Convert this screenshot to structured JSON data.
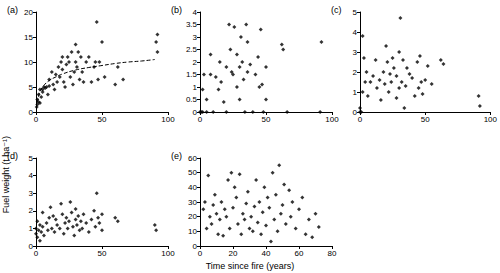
{
  "chart_data": {
    "type": "scatter",
    "xlabel": "Time since fire (years)",
    "ylabel": "Fuel weight (t ha⁻¹)",
    "grid": false,
    "panels": [
      {
        "title": "(a)",
        "xlim": [
          0,
          100
        ],
        "xticks": [
          0,
          50,
          100
        ],
        "ylim": [
          0,
          20
        ],
        "yticks": [
          0,
          5,
          10,
          15,
          20
        ],
        "series": [
          {
            "type": "scatter",
            "marker": "diamond",
            "color": "#000000",
            "x": [
              0.5,
              1,
              1,
              2,
              2,
              3,
              3,
              4,
              5,
              5,
              6,
              7,
              8,
              9,
              10,
              10,
              12,
              13,
              14,
              15,
              16,
              17,
              18,
              19,
              20,
              20,
              21,
              22,
              23,
              24,
              25,
              26,
              27,
              28,
              29,
              30,
              30,
              31,
              32,
              33,
              34,
              35,
              36,
              38,
              40,
              42,
              44,
              45,
              46,
              47,
              48,
              50,
              52,
              60,
              62,
              66,
              91,
              92,
              92
            ],
            "values": [
              1,
              1.5,
              2.5,
              2,
              3.5,
              4.5,
              1.8,
              3,
              4.5,
              4,
              5,
              4.8,
              5,
              3.5,
              5.2,
              6.5,
              8,
              5.5,
              4.5,
              7.5,
              6,
              9,
              7,
              10,
              11,
              8.5,
              6,
              5,
              9.5,
              11,
              10,
              7,
              12,
              5.5,
              8,
              10,
              13.5,
              9,
              12,
              6.5,
              11,
              8,
              6,
              10,
              11,
              6,
              9,
              10,
              18,
              6.5,
              10,
              14,
              7,
              5.5,
              9,
              6.5,
              14,
              15.5,
              12
            ]
          },
          {
            "type": "line",
            "line_style": "dashed",
            "color": "#000000",
            "x": [
              1,
              2,
              3,
              5,
              10,
              15,
              20,
              30,
              40,
              50,
              60,
              70,
              80,
              90
            ],
            "values": [
              1.9,
              3.2,
              4.0,
              5.0,
              6.3,
              7.0,
              7.6,
              8.4,
              8.9,
              9.3,
              9.7,
              10.0,
              10.2,
              10.5
            ]
          }
        ]
      },
      {
        "title": "(b)",
        "xlim": [
          0,
          100
        ],
        "xticks": [
          0,
          50,
          100
        ],
        "ylim": [
          0,
          4
        ],
        "yticks": [
          0,
          0.5,
          1,
          1.5,
          2,
          2.5,
          3,
          3.5,
          4
        ],
        "series": [
          {
            "type": "scatter",
            "marker": "diamond",
            "color": "#000000",
            "x": [
              0,
              1,
              2,
              2,
              3,
              5,
              5,
              8,
              8,
              10,
              12,
              14,
              15,
              16,
              18,
              20,
              20,
              22,
              23,
              24,
              25,
              26,
              28,
              28,
              30,
              30,
              31,
              32,
              33,
              34,
              35,
              36,
              36,
              38,
              40,
              42,
              44,
              45,
              46,
              47,
              48,
              50,
              50,
              62,
              63,
              66,
              91,
              92
            ],
            "values": [
              0,
              0,
              0.9,
              0,
              1.5,
              0.5,
              0,
              2.3,
              1.5,
              0,
              1.4,
              0.9,
              2,
              1.2,
              0.4,
              1.8,
              0,
              3.5,
              2.5,
              1.6,
              1.5,
              3.4,
              2.3,
              1,
              1.8,
              0.5,
              3,
              2,
              1.3,
              0,
              3.5,
              2.8,
              1.6,
              1.9,
              0,
              1.5,
              2.2,
              1,
              3.3,
              1.1,
              0,
              0.5,
              1.8,
              2.7,
              2.5,
              0,
              0,
              2.8
            ]
          }
        ]
      },
      {
        "title": "(c)",
        "xlim": [
          0,
          100
        ],
        "xticks": [
          0,
          50,
          100
        ],
        "ylim": [
          0,
          5
        ],
        "yticks": [
          0,
          1,
          2,
          3,
          4,
          5
        ],
        "series": [
          {
            "type": "scatter",
            "marker": "diamond",
            "color": "#000000",
            "x": [
              0,
              0,
              1,
              2,
              2,
              3,
              4,
              5,
              6,
              8,
              10,
              12,
              13,
              15,
              16,
              18,
              19,
              20,
              21,
              22,
              23,
              24,
              25,
              26,
              28,
              28,
              30,
              30,
              31,
              32,
              33,
              34,
              35,
              36,
              38,
              40,
              42,
              44,
              45,
              46,
              47,
              48,
              50,
              52,
              55,
              62,
              64,
              91,
              92
            ],
            "values": [
              0,
              0.2,
              0,
              3.8,
              1,
              2.7,
              1.5,
              2,
              0.8,
              1.5,
              1.8,
              2.6,
              1.2,
              1.6,
              0.6,
              2,
              1.4,
              3.3,
              2.5,
              1,
              1.9,
              1.5,
              2.7,
              2.2,
              0.7,
              1.8,
              1.2,
              3,
              4.7,
              1.5,
              2.6,
              0.2,
              1.3,
              2.2,
              1.9,
              1.7,
              0.8,
              2.5,
              1.2,
              2.8,
              1.5,
              0.9,
              1.6,
              2.3,
              1.4,
              2.6,
              2.4,
              0.8,
              0.3
            ]
          }
        ]
      },
      {
        "title": "(d)",
        "xlim": [
          0,
          100
        ],
        "xticks": [
          0,
          50,
          100
        ],
        "ylim": [
          0,
          5
        ],
        "yticks": [
          0,
          1,
          2,
          3,
          4,
          5
        ],
        "series": [
          {
            "type": "scatter",
            "marker": "diamond",
            "color": "#000000",
            "x": [
              0,
              0,
              1,
              1,
              2,
              3,
              3,
              4,
              5,
              5,
              6,
              8,
              9,
              10,
              11,
              12,
              13,
              14,
              15,
              16,
              18,
              19,
              20,
              21,
              22,
              23,
              24,
              25,
              26,
              27,
              28,
              29,
              30,
              30,
              31,
              32,
              33,
              34,
              35,
              36,
              38,
              40,
              42,
              44,
              45,
              46,
              47,
              48,
              50,
              50,
              60,
              62,
              90,
              91
            ],
            "values": [
              1,
              0.7,
              1.4,
              0.5,
              0.9,
              1.2,
              0.3,
              0.8,
              1.9,
              1.1,
              0.6,
              1.3,
              0.9,
              1.6,
              2.2,
              1,
              1.7,
              0.8,
              1.5,
              1.2,
              1,
              2.4,
              1.8,
              0.7,
              1.3,
              1.6,
              1,
              1.4,
              2.5,
              1.9,
              1.1,
              0.6,
              1.5,
              2.1,
              1.2,
              1.7,
              0.9,
              1.4,
              1,
              1.8,
              1.3,
              0.8,
              1.5,
              2,
              1.1,
              3,
              1.6,
              1.3,
              1.8,
              0.9,
              1.6,
              1.4,
              1.2,
              0.9
            ]
          }
        ]
      },
      {
        "title": "(e)",
        "xlim": [
          0,
          80
        ],
        "xticks": [
          0,
          20,
          40,
          60,
          80
        ],
        "ylim": [
          0,
          60
        ],
        "yticks": [
          0,
          10,
          20,
          30,
          40,
          50,
          60
        ],
        "series": [
          {
            "type": "scatter",
            "marker": "diamond",
            "color": "#000000",
            "x": [
              2,
              3,
              4,
              5,
              6,
              7,
              8,
              9,
              10,
              11,
              12,
              13,
              14,
              15,
              16,
              17,
              18,
              19,
              20,
              21,
              22,
              23,
              24,
              25,
              26,
              27,
              28,
              29,
              30,
              31,
              32,
              33,
              34,
              35,
              36,
              37,
              38,
              39,
              40,
              41,
              42,
              43,
              44,
              45,
              46,
              47,
              48,
              49,
              50,
              51,
              52,
              54,
              55,
              56,
              58,
              60,
              62,
              64,
              66,
              68,
              70,
              72
            ],
            "values": [
              25,
              30,
              12,
              48,
              20,
              15,
              28,
              35,
              22,
              8,
              18,
              30,
              7,
              25,
              20,
              45,
              12,
              50,
              26,
              40,
              33,
              15,
              49,
              8,
              22,
              18,
              29,
              37,
              12,
              20,
              10,
              27,
              45,
              16,
              30,
              8,
              23,
              40,
              14,
              33,
              26,
              3,
              50,
              18,
              35,
              10,
              55,
              22,
              28,
              42,
              15,
              38,
              20,
              30,
              12,
              25,
              33,
              8,
              18,
              6,
              22,
              13
            ]
          }
        ]
      }
    ]
  }
}
